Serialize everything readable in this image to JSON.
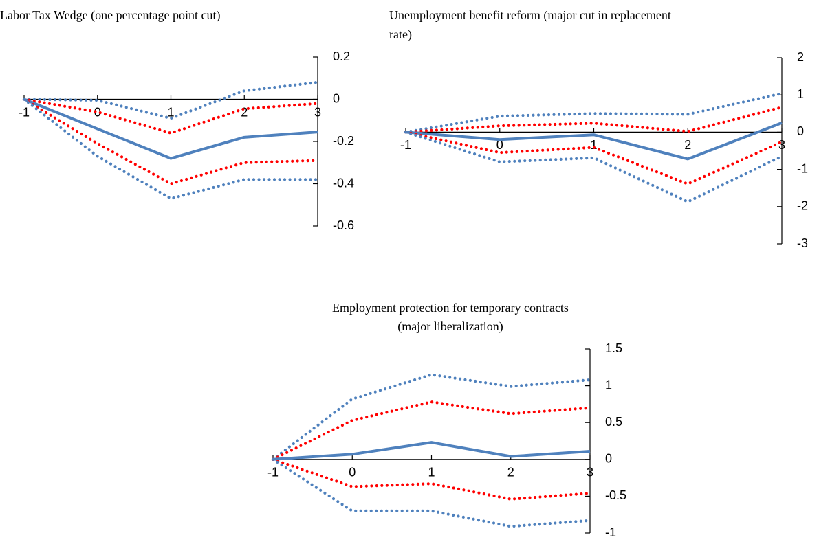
{
  "chart_data": [
    {
      "type": "line",
      "title": "Labor Tax Wedge (one percentage point cut)",
      "x": [
        -1,
        0,
        1,
        2,
        3
      ],
      "xlim": [
        -1,
        3
      ],
      "xticks": [
        -1,
        0,
        1,
        2,
        3
      ],
      "ylim": [
        -0.6,
        0.2
      ],
      "yticks": [
        -0.6,
        -0.4,
        -0.2,
        0,
        0.2
      ],
      "yaxis_side": "right",
      "series": [
        {
          "color": "#4f81bd",
          "style": "dotted",
          "values": [
            0,
            -0.005,
            -0.09,
            0.04,
            0.08
          ]
        },
        {
          "color": "#ff0000",
          "style": "dotted",
          "values": [
            0,
            -0.06,
            -0.16,
            -0.045,
            -0.02
          ]
        },
        {
          "color": "#4f81bd",
          "style": "solid",
          "values": [
            0,
            -0.14,
            -0.28,
            -0.18,
            -0.155
          ]
        },
        {
          "color": "#ff0000",
          "style": "dotted",
          "values": [
            0,
            -0.21,
            -0.4,
            -0.3,
            -0.29
          ]
        },
        {
          "color": "#4f81bd",
          "style": "dotted",
          "values": [
            0,
            -0.27,
            -0.47,
            -0.38,
            -0.38
          ]
        }
      ]
    },
    {
      "type": "line",
      "title": "Unemployment benefit reform (major cut in replacement rate)",
      "x": [
        -1,
        0,
        1,
        2,
        3
      ],
      "xlim": [
        -1,
        3
      ],
      "xticks": [
        -1,
        0,
        1,
        2,
        3
      ],
      "ylim": [
        -3,
        2
      ],
      "yticks": [
        -3,
        -2,
        -1,
        0,
        1,
        2
      ],
      "yaxis_side": "right",
      "series": [
        {
          "color": "#4f81bd",
          "style": "dotted",
          "values": [
            0,
            0.43,
            0.5,
            0.48,
            1.04
          ]
        },
        {
          "color": "#ff0000",
          "style": "dotted",
          "values": [
            0,
            0.17,
            0.24,
            0.02,
            0.67
          ]
        },
        {
          "color": "#4f81bd",
          "style": "solid",
          "values": [
            0,
            -0.2,
            -0.07,
            -0.72,
            0.25
          ]
        },
        {
          "color": "#ff0000",
          "style": "dotted",
          "values": [
            0,
            -0.55,
            -0.41,
            -1.39,
            -0.26
          ]
        },
        {
          "color": "#4f81bd",
          "style": "dotted",
          "values": [
            0,
            -0.8,
            -0.69,
            -1.87,
            -0.65
          ]
        }
      ]
    },
    {
      "type": "line",
      "title": "Employment protection for temporary contracts (major liberalization)",
      "x": [
        -1,
        0,
        1,
        2,
        3
      ],
      "xlim": [
        -1,
        3
      ],
      "xticks": [
        -1,
        0,
        1,
        2,
        3
      ],
      "ylim": [
        -1,
        1.5
      ],
      "yticks": [
        -1,
        -0.5,
        0,
        0.5,
        1,
        1.5
      ],
      "yaxis_side": "right",
      "series": [
        {
          "color": "#4f81bd",
          "style": "dotted",
          "values": [
            0,
            0.82,
            1.15,
            0.99,
            1.08
          ]
        },
        {
          "color": "#ff0000",
          "style": "dotted",
          "values": [
            0,
            0.53,
            0.78,
            0.62,
            0.7
          ]
        },
        {
          "color": "#4f81bd",
          "style": "solid",
          "values": [
            0,
            0.07,
            0.23,
            0.04,
            0.11
          ]
        },
        {
          "color": "#ff0000",
          "style": "dotted",
          "values": [
            0,
            -0.37,
            -0.33,
            -0.54,
            -0.46
          ]
        },
        {
          "color": "#4f81bd",
          "style": "dotted",
          "values": [
            0,
            -0.7,
            -0.7,
            -0.91,
            -0.83
          ]
        }
      ]
    }
  ]
}
